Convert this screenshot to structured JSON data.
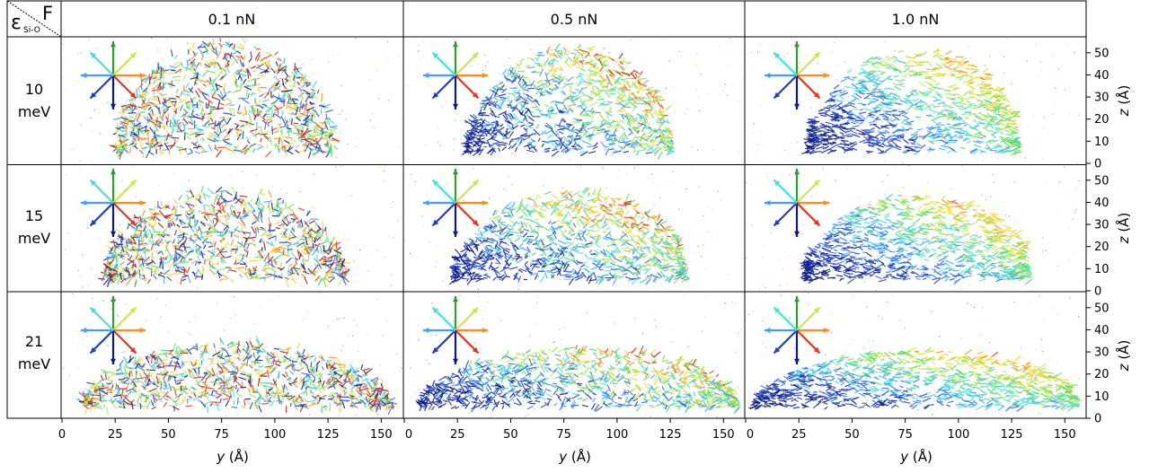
{
  "corner": {
    "row_symbol": "ε",
    "row_subscript": "Si-O",
    "col_symbol": "F"
  },
  "columns": [
    "0.1 nN",
    "0.5 nN",
    "1.0 nN"
  ],
  "rows": [
    {
      "value": "10",
      "unit": "meV"
    },
    {
      "value": "15",
      "unit": "meV"
    },
    {
      "value": "21",
      "unit": "meV"
    }
  ],
  "x_axis": {
    "var": "y",
    "unit": " (Å)",
    "ticks": [
      "0",
      "25",
      "50",
      "75",
      "100",
      "125",
      "150"
    ]
  },
  "z_axis": {
    "var": "z",
    "unit": " (Å)",
    "ticks": [
      "0",
      "10",
      "20",
      "30",
      "40",
      "50"
    ]
  },
  "colors": {
    "arrows": [
      "#2ca02c",
      "#c8e84a",
      "#ff8c1a",
      "#e8341c",
      "#0a1a8c",
      "#1f3fbf",
      "#3fa0ff",
      "#46e0e0"
    ]
  },
  "chart_data": {
    "type": "scatter",
    "description_of_marks": "dense fields of colored velocity arrows filling a droplet-shaped region per panel",
    "x_label": "y (Å)",
    "y_label": "z (Å)",
    "xlim": [
      0,
      160
    ],
    "ylim": [
      0,
      56
    ],
    "panels": [
      {
        "row": "10 meV",
        "col": "0.1 nN",
        "droplet": {
          "x_min": 25,
          "x_max": 128,
          "height": 55
        }
      },
      {
        "row": "10 meV",
        "col": "0.5 nN",
        "droplet": {
          "x_min": 30,
          "x_max": 127,
          "height": 53
        }
      },
      {
        "row": "10 meV",
        "col": "1.0 nN",
        "droplet": {
          "x_min": 30,
          "x_max": 130,
          "height": 52
        }
      },
      {
        "row": "15 meV",
        "col": "0.1 nN",
        "droplet": {
          "x_min": 20,
          "x_max": 133,
          "height": 46
        }
      },
      {
        "row": "15 meV",
        "col": "0.5 nN",
        "droplet": {
          "x_min": 24,
          "x_max": 134,
          "height": 45
        }
      },
      {
        "row": "15 meV",
        "col": "1.0 nN",
        "droplet": {
          "x_min": 28,
          "x_max": 135,
          "height": 44
        }
      },
      {
        "row": "21 meV",
        "col": "0.1 nN",
        "droplet": {
          "x_min": 10,
          "x_max": 155,
          "height": 34
        }
      },
      {
        "row": "21 meV",
        "col": "0.5 nN",
        "droplet": {
          "x_min": 8,
          "x_max": 158,
          "height": 32
        }
      },
      {
        "row": "21 meV",
        "col": "1.0 nN",
        "droplet": {
          "x_min": 5,
          "x_max": 158,
          "height": 31
        }
      }
    ]
  }
}
